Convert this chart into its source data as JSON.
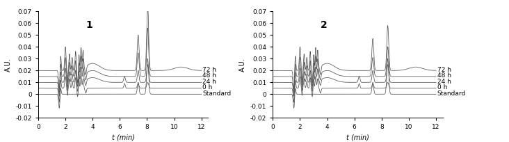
{
  "title1": "1",
  "title2": "2",
  "xlabel": "t (min)",
  "ylabel": "A.U.",
  "xlim": [
    0,
    12
  ],
  "ylim": [
    -0.02,
    0.07
  ],
  "yticks": [
    -0.02,
    -0.01,
    0,
    0.01,
    0.02,
    0.03,
    0.04,
    0.05,
    0.06,
    0.07
  ],
  "xticks": [
    0,
    2,
    4,
    6,
    8,
    10,
    12
  ],
  "labels": [
    "Standard",
    "0 h",
    "24 h",
    "48 h",
    "72 h"
  ],
  "offsets": [
    0.0,
    0.005,
    0.01,
    0.015,
    0.02
  ],
  "line_color": "#555555",
  "font_size_title": 10,
  "font_size_label": 7,
  "font_size_tick": 6.5,
  "font_size_annot": 6.5
}
